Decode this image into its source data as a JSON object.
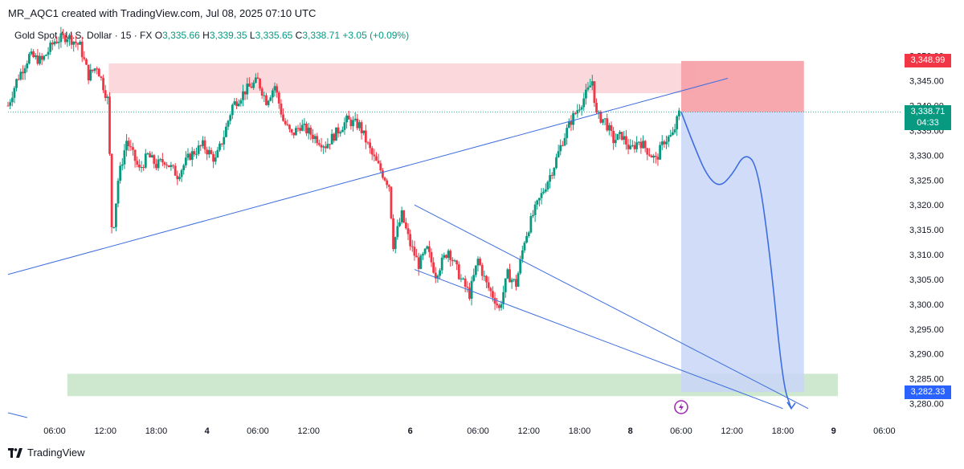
{
  "header": {
    "caption": "MR_AQC1 created with TradingView.com, Jul 08, 2025 07:10 UTC"
  },
  "symbol_line": {
    "name": "Gold Spot / U.S. Dollar · 15 · FX",
    "o_label": "O",
    "o_value": "3,335.66",
    "h_label": "H",
    "h_value": "3,339.35",
    "l_label": "L",
    "l_value": "3,335.65",
    "c_label": "C",
    "c_value": "3,338.71",
    "change": "+3.05 (+0.09%)"
  },
  "footer": {
    "brand": "TradingView"
  },
  "colors": {
    "up": "#089981",
    "down": "#f23645",
    "trendline": "#3d6ee0",
    "supply_zone": "#fbd4d7",
    "demand_zone": "#c8e6c9",
    "stop_zone": "#f7a3ab",
    "target_zone": "#c9d6f7",
    "tag_stop": "#f23645",
    "tag_last": "#787b86",
    "tag_current": "#089981",
    "tag_target": "#2962ff"
  },
  "price_tags": [
    {
      "label": "3,348.99",
      "price": 3348.99,
      "color": "#f23645"
    },
    {
      "label": "3,338.75",
      "price": 3338.75,
      "color": "#787b86"
    },
    {
      "label": "3,338.71",
      "sub": "04:33",
      "price": 3338.71,
      "color": "#089981"
    },
    {
      "label": "3,282.33",
      "price": 3282.33,
      "color": "#2962ff"
    }
  ],
  "chart_data": {
    "type": "candlestick",
    "y_axis": {
      "ticks": [
        3280,
        3285,
        3290,
        3295,
        3300,
        3305,
        3310,
        3315,
        3320,
        3325,
        3330,
        3335,
        3340,
        3345,
        3350
      ],
      "tick_labels": [
        "3,280.00",
        "3,285.00",
        "3,290.00",
        "3,295.00",
        "3,300.00",
        "3,305.00",
        "3,310.00",
        "3,315.00",
        "3,320.00",
        "3,325.00",
        "3,330.00",
        "3,335.00",
        "3,340.00",
        "3,345.00",
        "3,350.00"
      ],
      "range": [
        3277.5,
        3353.5
      ]
    },
    "x_axis": {
      "ticks": [
        {
          "label": "06:00",
          "t": 6
        },
        {
          "label": "12:00",
          "t": 12
        },
        {
          "label": "18:00",
          "t": 18
        },
        {
          "label": "4",
          "t": 24
        },
        {
          "label": "06:00",
          "t": 30
        },
        {
          "label": "12:00",
          "t": 36
        },
        {
          "label": "6",
          "t": 48
        },
        {
          "label": "06:00",
          "t": 56
        },
        {
          "label": "12:00",
          "t": 62
        },
        {
          "label": "18:00",
          "t": 68
        },
        {
          "label": "8",
          "t": 74
        },
        {
          "label": "06:00",
          "t": 80
        },
        {
          "label": "12:00",
          "t": 86
        },
        {
          "label": "18:00",
          "t": 92
        },
        {
          "label": "9",
          "t": 98
        },
        {
          "label": "06:00",
          "t": 104
        }
      ],
      "range": [
        0.5,
        106
      ],
      "unit": "hours"
    },
    "price_path": [
      [
        0.5,
        3340
      ],
      [
        1.5,
        3345
      ],
      [
        3,
        3350
      ],
      [
        4.5,
        3349
      ],
      [
        6,
        3353
      ],
      [
        7.5,
        3354
      ],
      [
        9,
        3352
      ],
      [
        10,
        3346
      ],
      [
        11,
        3348
      ],
      [
        12.3,
        3341
      ],
      [
        12.8,
        3313
      ],
      [
        13.5,
        3325
      ],
      [
        14.5,
        3333
      ],
      [
        16,
        3327
      ],
      [
        17,
        3330
      ],
      [
        18,
        3328
      ],
      [
        19,
        3329
      ],
      [
        20.5,
        3326
      ],
      [
        22,
        3330
      ],
      [
        23.5,
        3332
      ],
      [
        25,
        3329
      ],
      [
        26,
        3334
      ],
      [
        27,
        3340
      ],
      [
        28.5,
        3343
      ],
      [
        30,
        3345
      ],
      [
        31,
        3341
      ],
      [
        32,
        3344
      ],
      [
        33,
        3337
      ],
      [
        34,
        3334
      ],
      [
        35,
        3336
      ],
      [
        36.5,
        3334
      ],
      [
        38,
        3332
      ],
      [
        39,
        3334
      ],
      [
        40.5,
        3337
      ],
      [
        42,
        3336
      ],
      [
        43.5,
        3330
      ],
      [
        44.5,
        3327
      ],
      [
        45.5,
        3324
      ],
      [
        46,
        3312
      ],
      [
        47,
        3318
      ],
      [
        48,
        3312
      ],
      [
        49,
        3308
      ],
      [
        50,
        3311
      ],
      [
        51,
        3306
      ],
      [
        52.5,
        3311
      ],
      [
        54,
        3305
      ],
      [
        55,
        3302
      ],
      [
        56,
        3309
      ],
      [
        57,
        3304
      ],
      [
        58,
        3301
      ],
      [
        58.5,
        3299
      ],
      [
        59.5,
        3306
      ],
      [
        60.5,
        3304
      ],
      [
        61.5,
        3313
      ],
      [
        62.5,
        3318
      ],
      [
        63.5,
        3322
      ],
      [
        65,
        3328
      ],
      [
        66,
        3333
      ],
      [
        67,
        3337
      ],
      [
        68,
        3340
      ],
      [
        69,
        3343
      ],
      [
        69.5,
        3345
      ],
      [
        70,
        3338
      ],
      [
        71,
        3337
      ],
      [
        72,
        3333
      ],
      [
        73,
        3334
      ],
      [
        74,
        3331
      ],
      [
        75,
        3333
      ],
      [
        76,
        3331
      ],
      [
        77,
        3329
      ],
      [
        78,
        3333
      ],
      [
        79,
        3334
      ],
      [
        79.8,
        3338.71
      ]
    ],
    "drawings": {
      "supply_zone": {
        "t": [
          12.4,
          82
        ],
        "price": [
          3342.5,
          3348.5
        ]
      },
      "demand_zone": {
        "t": [
          7.5,
          98.5
        ],
        "price": [
          3281.5,
          3286
        ]
      },
      "stop_box": {
        "t": [
          80,
          94.5
        ],
        "price": [
          3338.71,
          3348.99
        ]
      },
      "target_box": {
        "t": [
          80,
          94.5
        ],
        "price": [
          3282.33,
          3338.71
        ]
      },
      "ascending_trendline": {
        "from": [
          0.5,
          3306
        ],
        "to": [
          85.5,
          3345.5
        ]
      },
      "channel_upper": {
        "from": [
          48.5,
          3320
        ],
        "to": [
          95,
          3279
        ]
      },
      "channel_lower": {
        "from": [
          48.5,
          3307
        ],
        "to": [
          92,
          3279
        ]
      },
      "projection_path": [
        [
          80,
          3338.71
        ],
        [
          81.5,
          3332
        ],
        [
          83,
          3326
        ],
        [
          84.5,
          3323.5
        ],
        [
          86,
          3326
        ],
        [
          87.5,
          3330.5
        ],
        [
          89,
          3328
        ],
        [
          90.5,
          3310
        ],
        [
          92,
          3284
        ],
        [
          93,
          3279
        ]
      ]
    }
  }
}
